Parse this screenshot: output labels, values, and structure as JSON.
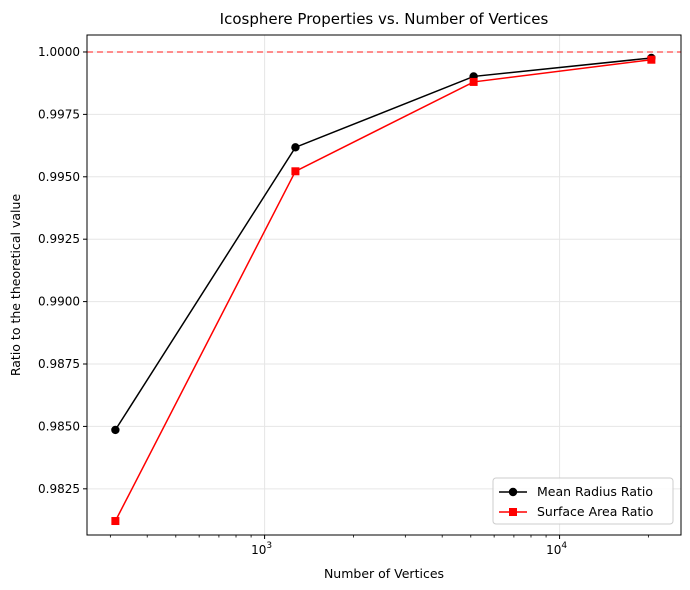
{
  "chart_data": {
    "type": "line",
    "title": "Icosphere Properties vs. Number of Vertices",
    "xlabel": "Number of Vertices",
    "ylabel": "Ratio to the theoretical value",
    "x_scale": "log",
    "xlim": [
      250,
      25800
    ],
    "ylim": [
      0.98065,
      1.00068
    ],
    "x_ticks": [
      {
        "value": 1000,
        "base": "10",
        "exp": "3"
      },
      {
        "value": 10000,
        "base": "10",
        "exp": "4"
      }
    ],
    "y_ticks": [
      "0.9825",
      "0.9850",
      "0.9875",
      "0.9900",
      "0.9925",
      "0.9950",
      "0.9975",
      "1.0000"
    ],
    "grid": true,
    "legend_position": "lower-right",
    "reference_line": {
      "y": 1.0,
      "color": "#ff6666",
      "style": "dashed"
    },
    "x": [
      312,
      1272,
      5112,
      20472
    ],
    "series": [
      {
        "name": "Mean Radius Ratio",
        "color": "#000000",
        "marker": "circle",
        "values": [
          0.98486,
          0.99618,
          0.99902,
          0.99976
        ]
      },
      {
        "name": "Surface Area Ratio",
        "color": "#ff0000",
        "marker": "square",
        "values": [
          0.98121,
          0.99522,
          0.9988,
          0.99969
        ]
      }
    ]
  }
}
